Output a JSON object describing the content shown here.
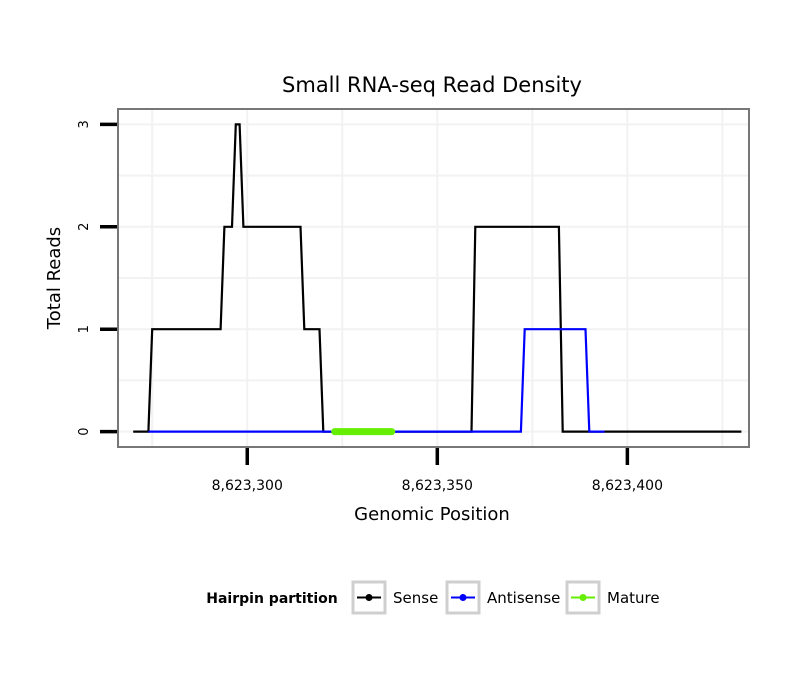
{
  "chart_data": {
    "type": "line",
    "title": "Small RNA-seq Read Density",
    "xlabel": "Genomic Position",
    "ylabel": "Total Reads",
    "xlim": [
      8623266,
      8623432
    ],
    "ylim": [
      -0.15,
      3.15
    ],
    "x_ticks": [
      8623300,
      8623350,
      8623400
    ],
    "x_tick_labels": [
      "8,623,300",
      "8,623,350",
      "8,623,400"
    ],
    "y_ticks": [
      0,
      1,
      2,
      3
    ],
    "y_tick_labels": [
      "0",
      "1",
      "2",
      "3"
    ],
    "grid": true,
    "legend": {
      "title": "Hairpin partition",
      "position": "bottom",
      "entries": [
        "Sense",
        "Antisense",
        "Mature"
      ]
    },
    "series": [
      {
        "name": "Sense",
        "color": "#000000",
        "x": [
          8623270,
          8623274,
          8623275,
          8623293,
          8623294,
          8623296,
          8623297,
          8623298,
          8623299,
          8623314,
          8623315,
          8623319,
          8623320,
          8623359,
          8623360,
          8623382,
          8623383,
          8623430
        ],
        "y": [
          0,
          0,
          1,
          1,
          2,
          2,
          3,
          3,
          2,
          2,
          1,
          1,
          0,
          0,
          2,
          2,
          0,
          0
        ]
      },
      {
        "name": "Antisense",
        "color": "#0000ff",
        "x": [
          8623274,
          8623372,
          8623373,
          8623389,
          8623390,
          8623394
        ],
        "y": [
          0,
          0,
          1,
          1,
          0,
          0
        ]
      },
      {
        "name": "Mature",
        "color": "#66ee00",
        "x": [
          8623323,
          8623338
        ],
        "y": [
          0,
          0
        ]
      }
    ]
  }
}
